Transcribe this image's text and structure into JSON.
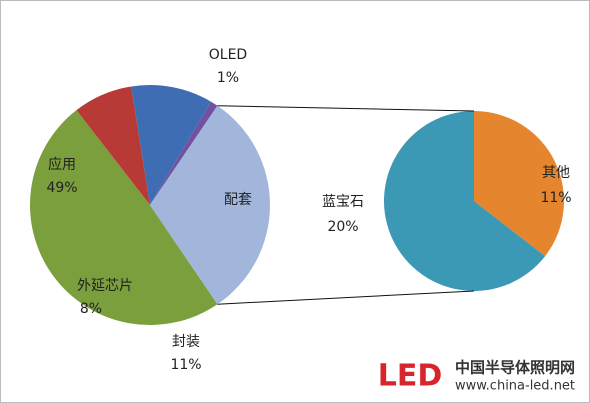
{
  "chart_data": {
    "type": "pie-of-pie",
    "categories": [
      "应用",
      "外延芯片",
      "封装",
      "OLED",
      "配套"
    ],
    "values": [
      49,
      8,
      11,
      1,
      31
    ],
    "value_labels": [
      "49%",
      "8%",
      "11%",
      "1%",
      null
    ],
    "colors": [
      "#7b9f3c",
      "#b83a37",
      "#3e6db3",
      "#7252a0",
      "#a2b6dc"
    ],
    "secondary": {
      "categories": [
        "蓝宝石",
        "其他"
      ],
      "values": [
        20,
        11
      ],
      "value_labels": [
        "20%",
        "11%"
      ],
      "colors": [
        "#3b99b6",
        "#e5852e"
      ]
    }
  },
  "watermark": {
    "logo": "LED",
    "brand": "中国半导体照明网",
    "url": "www.china-led.net"
  }
}
